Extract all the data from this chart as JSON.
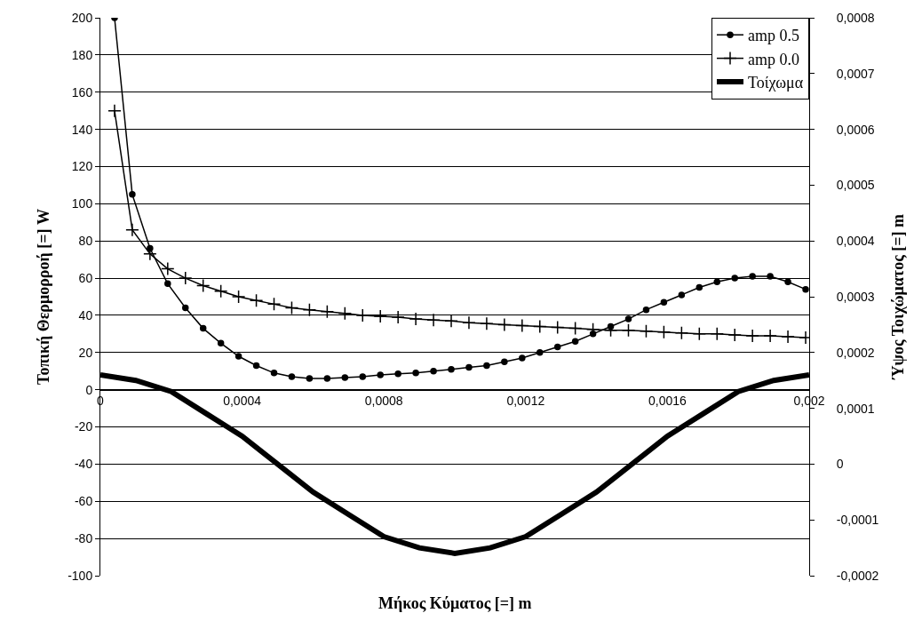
{
  "chart_data": {
    "type": "line",
    "xlabel": "Μήκος Κύματος [=] m",
    "ylabel": "Τοπική Θερμορροή [=] W",
    "y2label": "Ύψος Τοιχώματος [=] m",
    "xlim": [
      0,
      0.002
    ],
    "xticks": [
      0,
      {
        "value": 0.0004,
        "label": "0,0004"
      },
      {
        "value": 0.0008,
        "label": "0,0008"
      },
      {
        "value": 0.0012,
        "label": "0,0012"
      },
      {
        "value": 0.0016,
        "label": "0,0016"
      },
      {
        "value": 0.002,
        "label": "0,002"
      }
    ],
    "ylim": [
      -100,
      200
    ],
    "yticks": [
      -100,
      -80,
      -60,
      -40,
      -20,
      0,
      20,
      40,
      60,
      80,
      100,
      120,
      140,
      160,
      180,
      200
    ],
    "y2lim": [
      -0.0002,
      0.0008
    ],
    "y2ticks": [
      {
        "value": -0.0002,
        "label": "-0,0002"
      },
      {
        "value": -0.0001,
        "label": "-0,0001"
      },
      0,
      {
        "value": 0.0001,
        "label": "0,0001"
      },
      {
        "value": 0.0002,
        "label": "0,0002"
      },
      {
        "value": 0.0003,
        "label": "0,0003"
      },
      {
        "value": 0.0004,
        "label": "0,0004"
      },
      {
        "value": 0.0005,
        "label": "0,0005"
      },
      {
        "value": 0.0006,
        "label": "0,0006"
      },
      {
        "value": 0.0007,
        "label": "0,0007"
      },
      {
        "value": 0.0008,
        "label": "0,0008"
      }
    ],
    "grid": "y",
    "legend": "top right",
    "series": [
      {
        "name": "amp 0.5",
        "color": "#000000",
        "marker": "circle",
        "x": [
          4e-05,
          9e-05,
          0.00014,
          0.00019,
          0.00024,
          0.00029,
          0.00034,
          0.00039,
          0.00044,
          0.00049,
          0.00054,
          0.00059,
          0.00064,
          0.00069,
          0.00074,
          0.00079,
          0.00084,
          0.00089,
          0.00094,
          0.00099,
          0.00104,
          0.00109,
          0.00114,
          0.00119,
          0.00124,
          0.00129,
          0.00134,
          0.00139,
          0.00144,
          0.00149,
          0.00154,
          0.00159,
          0.00164,
          0.00169,
          0.00174,
          0.00179,
          0.00184,
          0.00189,
          0.00194,
          0.00199
        ],
        "values": [
          200,
          105,
          76,
          57,
          44,
          33,
          25,
          18,
          13,
          9,
          7,
          6,
          6,
          6.5,
          7,
          8,
          8.5,
          9,
          10,
          11,
          12,
          13,
          15,
          17,
          20,
          23,
          26,
          30,
          34,
          38,
          43,
          47,
          51,
          55,
          58,
          60,
          61,
          61,
          58,
          54
        ]
      },
      {
        "name": "amp 0.0",
        "color": "#000000",
        "marker": "cross",
        "x": [
          4e-05,
          9e-05,
          0.00014,
          0.00019,
          0.00024,
          0.00029,
          0.00034,
          0.00039,
          0.00044,
          0.00049,
          0.00054,
          0.00059,
          0.00064,
          0.00069,
          0.00074,
          0.00079,
          0.00084,
          0.00089,
          0.00094,
          0.00099,
          0.00104,
          0.00109,
          0.00114,
          0.00119,
          0.00124,
          0.00129,
          0.00134,
          0.00139,
          0.00144,
          0.00149,
          0.00154,
          0.00159,
          0.00164,
          0.00169,
          0.00174,
          0.00179,
          0.00184,
          0.00189,
          0.00194,
          0.00199
        ],
        "values": [
          150,
          86,
          73,
          65,
          60,
          56,
          53,
          50,
          48,
          46,
          44,
          43,
          42,
          41,
          40,
          39.5,
          39,
          38,
          37.5,
          37,
          36,
          35.5,
          35,
          34.5,
          34,
          33.5,
          33,
          32.5,
          32,
          32,
          31.5,
          31,
          30.5,
          30,
          30,
          29.5,
          29,
          29,
          28.5,
          28
        ]
      },
      {
        "name": "Τοίχωμα",
        "color": "#000000",
        "marker": "none",
        "axis": "y2",
        "x": [
          0,
          0.0001,
          0.0002,
          0.0003,
          0.0004,
          0.0005,
          0.0006,
          0.0007,
          0.0008,
          0.0009,
          0.001,
          0.0011,
          0.0012,
          0.0013,
          0.0014,
          0.0015,
          0.0016,
          0.0017,
          0.0018,
          0.0019,
          0.002
        ],
        "values": [
          0.00016,
          0.00015,
          0.00013,
          9e-05,
          5e-05,
          0,
          -5e-05,
          -9e-05,
          -0.00013,
          -0.00015,
          -0.00016,
          -0.00015,
          -0.00013,
          -9e-05,
          -5e-05,
          0,
          5e-05,
          9e-05,
          0.00013,
          0.00015,
          0.00016
        ]
      }
    ]
  }
}
